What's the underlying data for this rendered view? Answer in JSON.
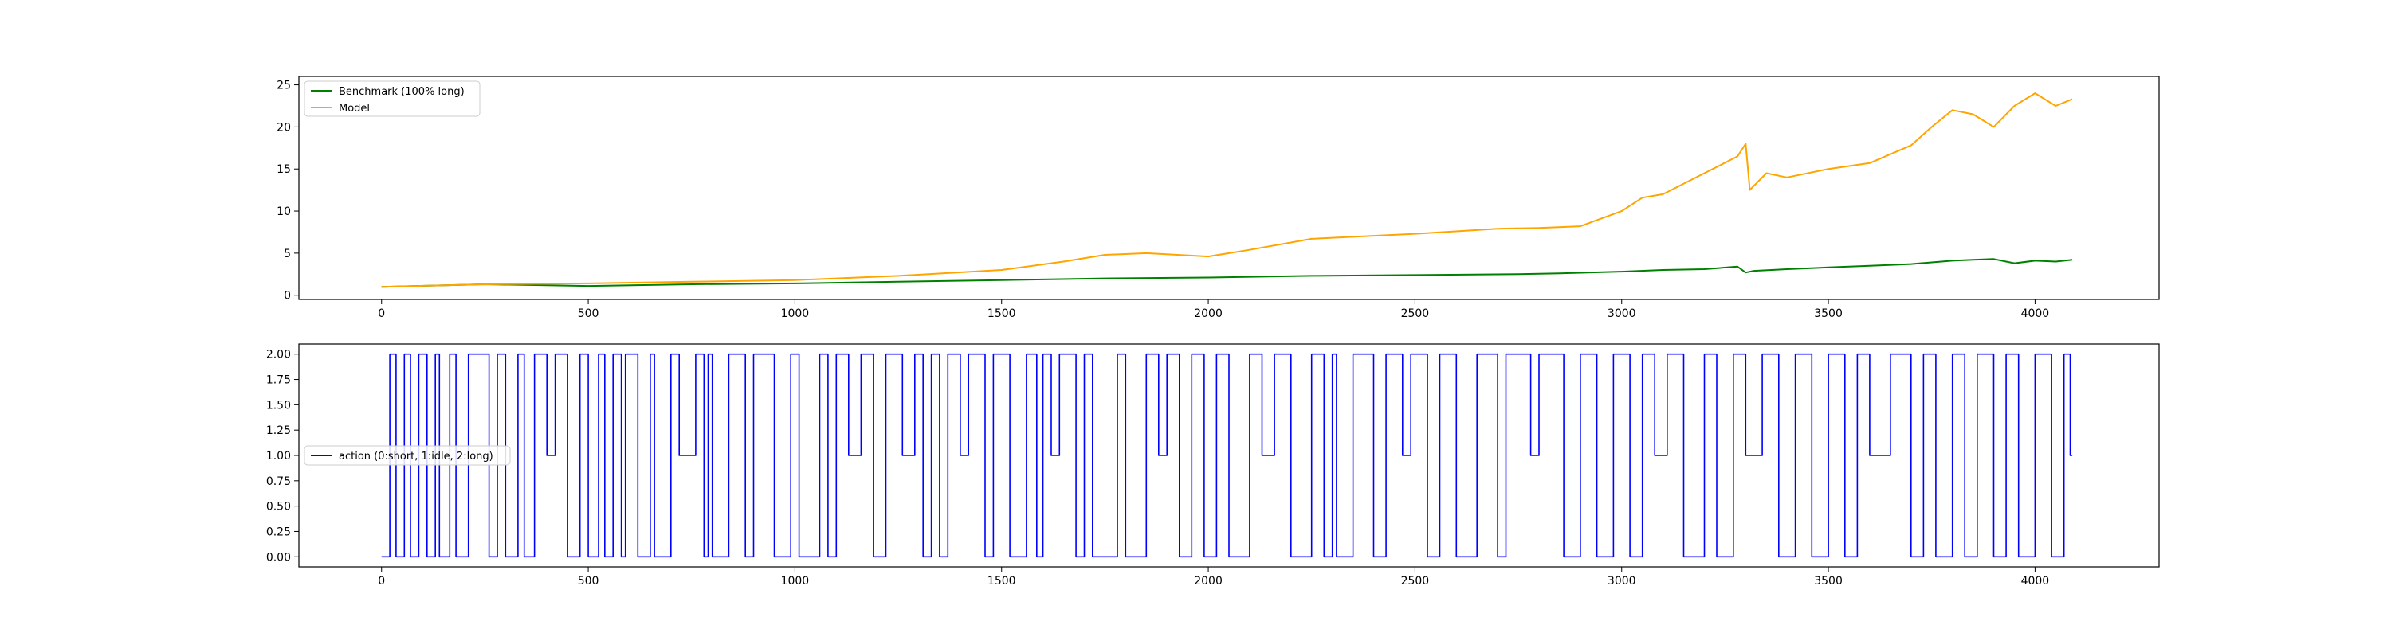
{
  "chart_data": [
    {
      "type": "line",
      "title": "",
      "xlabel": "",
      "ylabel": "",
      "xlim": [
        -200,
        4300
      ],
      "ylim": [
        -0.5,
        26
      ],
      "xticks": [
        0,
        500,
        1000,
        1500,
        2000,
        2500,
        3000,
        3500,
        4000
      ],
      "yticks": [
        0,
        5,
        10,
        15,
        20,
        25
      ],
      "xtick_labels": [
        "0",
        "500",
        "1000",
        "1500",
        "2000",
        "2500",
        "3000",
        "3500",
        "4000"
      ],
      "ytick_labels": [
        "0",
        "5",
        "10",
        "15",
        "20",
        "25"
      ],
      "grid": false,
      "legend_position": "upper-left",
      "series": [
        {
          "name": "Benchmark (100% long)",
          "color": "#008000",
          "x": [
            0,
            250,
            500,
            750,
            1000,
            1250,
            1500,
            1750,
            2000,
            2250,
            2500,
            2750,
            2850,
            3000,
            3100,
            3200,
            3280,
            3300,
            3320,
            3400,
            3500,
            3600,
            3700,
            3800,
            3850,
            3900,
            3950,
            4000,
            4050,
            4090
          ],
          "values": [
            1.0,
            1.3,
            1.1,
            1.3,
            1.4,
            1.6,
            1.8,
            2.0,
            2.1,
            2.3,
            2.4,
            2.5,
            2.6,
            2.8,
            3.0,
            3.1,
            3.4,
            2.7,
            2.9,
            3.1,
            3.3,
            3.5,
            3.7,
            4.1,
            4.2,
            4.3,
            3.8,
            4.1,
            4.0,
            4.2
          ]
        },
        {
          "name": "Model",
          "color": "#FFA500",
          "x": [
            0,
            250,
            500,
            750,
            1000,
            1250,
            1500,
            1650,
            1750,
            1850,
            2000,
            2100,
            2250,
            2500,
            2700,
            2800,
            2900,
            3000,
            3050,
            3100,
            3200,
            3280,
            3300,
            3310,
            3350,
            3400,
            3500,
            3600,
            3700,
            3750,
            3800,
            3850,
            3900,
            3950,
            4000,
            4050,
            4090
          ],
          "values": [
            1.0,
            1.3,
            1.4,
            1.6,
            1.8,
            2.3,
            3.0,
            4.0,
            4.8,
            5.0,
            4.6,
            5.4,
            6.7,
            7.3,
            7.9,
            8.0,
            8.2,
            10.0,
            11.6,
            12.0,
            14.5,
            16.5,
            18.0,
            12.5,
            14.5,
            14.0,
            15.0,
            15.7,
            17.8,
            20.0,
            22.0,
            21.5,
            20.0,
            22.5,
            24.0,
            22.5,
            23.3
          ]
        }
      ]
    },
    {
      "type": "line",
      "title": "",
      "xlabel": "",
      "ylabel": "",
      "xlim": [
        -200,
        4300
      ],
      "ylim": [
        -0.1,
        2.1
      ],
      "xticks": [
        0,
        500,
        1000,
        1500,
        2000,
        2500,
        3000,
        3500,
        4000
      ],
      "yticks": [
        0,
        0.25,
        0.5,
        0.75,
        1.0,
        1.25,
        1.5,
        1.75,
        2.0
      ],
      "xtick_labels": [
        "0",
        "500",
        "1000",
        "1500",
        "2000",
        "2500",
        "3000",
        "3500",
        "4000"
      ],
      "ytick_labels": [
        "0.00",
        "0.25",
        "0.50",
        "0.75",
        "1.00",
        "1.25",
        "1.50",
        "1.75",
        "2.00"
      ],
      "grid": false,
      "legend_position": "center-left",
      "series": [
        {
          "name": "action (0:short, 1:idle, 2:long)",
          "color": "#0000FF",
          "step": true,
          "x": [
            0,
            20,
            35,
            55,
            70,
            90,
            110,
            130,
            140,
            165,
            180,
            210,
            260,
            280,
            300,
            330,
            345,
            370,
            400,
            420,
            450,
            480,
            500,
            525,
            540,
            560,
            580,
            590,
            620,
            650,
            660,
            700,
            720,
            760,
            780,
            790,
            800,
            840,
            880,
            900,
            950,
            990,
            1010,
            1060,
            1080,
            1100,
            1130,
            1160,
            1190,
            1220,
            1260,
            1290,
            1310,
            1330,
            1350,
            1370,
            1400,
            1420,
            1460,
            1480,
            1520,
            1560,
            1585,
            1600,
            1620,
            1640,
            1680,
            1700,
            1720,
            1780,
            1800,
            1850,
            1880,
            1900,
            1930,
            1960,
            1990,
            2020,
            2050,
            2100,
            2130,
            2160,
            2200,
            2250,
            2280,
            2300,
            2310,
            2350,
            2400,
            2430,
            2470,
            2490,
            2530,
            2560,
            2600,
            2650,
            2700,
            2720,
            2780,
            2800,
            2860,
            2900,
            2940,
            2980,
            3020,
            3050,
            3080,
            3110,
            3150,
            3200,
            3230,
            3270,
            3300,
            3340,
            3380,
            3420,
            3460,
            3500,
            3540,
            3570,
            3600,
            3650,
            3700,
            3730,
            3760,
            3800,
            3830,
            3860,
            3900,
            3930,
            3960,
            4000,
            4040,
            4070,
            4085,
            4090
          ],
          "values": [
            0,
            2,
            0,
            2,
            0,
            2,
            0,
            2,
            0,
            2,
            0,
            2,
            0,
            2,
            0,
            2,
            0,
            2,
            1,
            2,
            0,
            2,
            0,
            2,
            0,
            2,
            0,
            2,
            0,
            2,
            0,
            2,
            1,
            2,
            0,
            2,
            0,
            2,
            0,
            2,
            0,
            2,
            0,
            2,
            0,
            2,
            1,
            2,
            0,
            2,
            1,
            2,
            0,
            2,
            0,
            2,
            1,
            2,
            0,
            2,
            0,
            2,
            0,
            2,
            1,
            2,
            0,
            2,
            0,
            2,
            0,
            2,
            1,
            2,
            0,
            2,
            0,
            2,
            0,
            2,
            1,
            2,
            0,
            2,
            0,
            2,
            0,
            2,
            0,
            2,
            1,
            2,
            0,
            2,
            0,
            2,
            0,
            2,
            1,
            2,
            0,
            2,
            0,
            2,
            0,
            2,
            1,
            2,
            0,
            2,
            0,
            2,
            1,
            2,
            0,
            2,
            0,
            2,
            0,
            2,
            1,
            2,
            0,
            2,
            0,
            2,
            0,
            2,
            0,
            2,
            0,
            2,
            0,
            2,
            1,
            1
          ]
        }
      ]
    }
  ]
}
